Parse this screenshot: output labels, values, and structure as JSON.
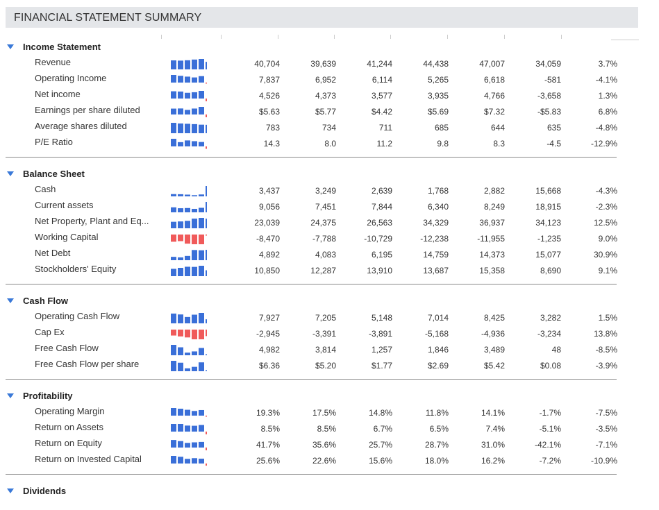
{
  "title": "FINANCIAL STATEMENT SUMMARY",
  "colors": {
    "positive_bar": "#3a6fd8",
    "negative_bar": "#f05a5a",
    "accent": "#3a79d8"
  },
  "sections": [
    {
      "title": "Income Statement",
      "rows": [
        {
          "label": "Revenue",
          "values": [
            "40,704",
            "39,639",
            "41,244",
            "44,438",
            "47,007",
            "34,059",
            "3.7%"
          ],
          "spark": [
            40704,
            39639,
            41244,
            44438,
            47007,
            34059
          ]
        },
        {
          "label": "Operating Income",
          "values": [
            "7,837",
            "6,952",
            "6,114",
            "5,265",
            "6,618",
            "-581",
            "-4.1%"
          ],
          "spark": [
            7837,
            6952,
            6114,
            5265,
            6618,
            -581
          ]
        },
        {
          "label": "Net income",
          "values": [
            "4,526",
            "4,373",
            "3,577",
            "3,935",
            "4,766",
            "-3,658",
            "1.3%"
          ],
          "spark": [
            4526,
            4373,
            3577,
            3935,
            4766,
            -3658
          ]
        },
        {
          "label": "Earnings per share diluted",
          "values": [
            "$5.63",
            "$5.77",
            "$4.42",
            "$5.69",
            "$7.32",
            "-$5.83",
            "6.8%"
          ],
          "spark": [
            5.63,
            5.77,
            4.42,
            5.69,
            7.32,
            -5.83
          ]
        },
        {
          "label": "Average shares diluted",
          "values": [
            "783",
            "734",
            "711",
            "685",
            "644",
            "635",
            "-4.8%"
          ],
          "spark": [
            783,
            734,
            711,
            685,
            644,
            635
          ]
        },
        {
          "label": "P/E Ratio",
          "values": [
            "14.3",
            "8.0",
            "11.2",
            "9.8",
            "8.3",
            "-4.5",
            "-12.9%"
          ],
          "spark": [
            14.3,
            8.0,
            11.2,
            9.8,
            8.3,
            -4.5
          ]
        }
      ]
    },
    {
      "title": "Balance Sheet",
      "rows": [
        {
          "label": "Cash",
          "values": [
            "3,437",
            "3,249",
            "2,639",
            "1,768",
            "2,882",
            "15,668",
            "-4.3%"
          ],
          "spark": [
            3437,
            3249,
            2639,
            1768,
            2882,
            15668
          ]
        },
        {
          "label": "Current assets",
          "values": [
            "9,056",
            "7,451",
            "7,844",
            "6,340",
            "8,249",
            "18,915",
            "-2.3%"
          ],
          "spark": [
            9056,
            7451,
            7844,
            6340,
            8249,
            18915
          ]
        },
        {
          "label": "Net Property, Plant and Eq...",
          "values": [
            "23,039",
            "24,375",
            "26,563",
            "34,329",
            "36,937",
            "34,123",
            "12.5%"
          ],
          "spark": [
            23039,
            24375,
            26563,
            34329,
            36937,
            34123
          ]
        },
        {
          "label": "Working Capital",
          "values": [
            "-8,470",
            "-7,788",
            "-10,729",
            "-12,238",
            "-11,955",
            "-1,235",
            "9.0%"
          ],
          "spark": [
            -8470,
            -7788,
            -10729,
            -12238,
            -11955,
            -1235
          ]
        },
        {
          "label": "Net Debt",
          "values": [
            "4,892",
            "4,083",
            "6,195",
            "14,759",
            "14,373",
            "15,077",
            "30.9%"
          ],
          "spark": [
            4892,
            4083,
            6195,
            14759,
            14373,
            15077
          ]
        },
        {
          "label": "Stockholders' Equity",
          "values": [
            "10,850",
            "12,287",
            "13,910",
            "13,687",
            "15,358",
            "8,690",
            "9.1%"
          ],
          "spark": [
            10850,
            12287,
            13910,
            13687,
            15358,
            8690
          ]
        }
      ]
    },
    {
      "title": "Cash Flow",
      "rows": [
        {
          "label": "Operating Cash Flow",
          "values": [
            "7,927",
            "7,205",
            "5,148",
            "7,014",
            "8,425",
            "3,282",
            "1.5%"
          ],
          "spark": [
            7927,
            7205,
            5148,
            7014,
            8425,
            3282
          ]
        },
        {
          "label": "Cap Ex",
          "values": [
            "-2,945",
            "-3,391",
            "-3,891",
            "-5,168",
            "-4,936",
            "-3,234",
            "13.8%"
          ],
          "spark": [
            -2945,
            -3391,
            -3891,
            -5168,
            -4936,
            -3234
          ]
        },
        {
          "label": "Free Cash Flow",
          "values": [
            "4,982",
            "3,814",
            "1,257",
            "1,846",
            "3,489",
            "48",
            "-8.5%"
          ],
          "spark": [
            4982,
            3814,
            1257,
            1846,
            3489,
            48
          ]
        },
        {
          "label": "Free Cash Flow per share",
          "values": [
            "$6.36",
            "$5.20",
            "$1.77",
            "$2.69",
            "$5.42",
            "$0.08",
            "-3.9%"
          ],
          "spark": [
            6.36,
            5.2,
            1.77,
            2.69,
            5.42,
            0.08
          ]
        }
      ]
    },
    {
      "title": "Profitability",
      "rows": [
        {
          "label": "Operating Margin",
          "values": [
            "19.3%",
            "17.5%",
            "14.8%",
            "11.8%",
            "14.1%",
            "-1.7%",
            "-7.5%"
          ],
          "spark": [
            19.3,
            17.5,
            14.8,
            11.8,
            14.1,
            -1.7
          ]
        },
        {
          "label": "Return on Assets",
          "values": [
            "8.5%",
            "8.5%",
            "6.7%",
            "6.5%",
            "7.4%",
            "-5.1%",
            "-3.5%"
          ],
          "spark": [
            8.5,
            8.5,
            6.7,
            6.5,
            7.4,
            -5.1
          ]
        },
        {
          "label": "Return on Equity",
          "values": [
            "41.7%",
            "35.6%",
            "25.7%",
            "28.7%",
            "31.0%",
            "-42.1%",
            "-7.1%"
          ],
          "spark": [
            41.7,
            35.6,
            25.7,
            28.7,
            31.0,
            -42.1
          ]
        },
        {
          "label": "Return on Invested Capital",
          "values": [
            "25.6%",
            "22.6%",
            "15.6%",
            "18.0%",
            "16.2%",
            "-7.2%",
            "-10.9%"
          ],
          "spark": [
            25.6,
            22.6,
            15.6,
            18.0,
            16.2,
            -7.2
          ]
        }
      ]
    },
    {
      "title": "Dividends",
      "rows": []
    }
  ]
}
